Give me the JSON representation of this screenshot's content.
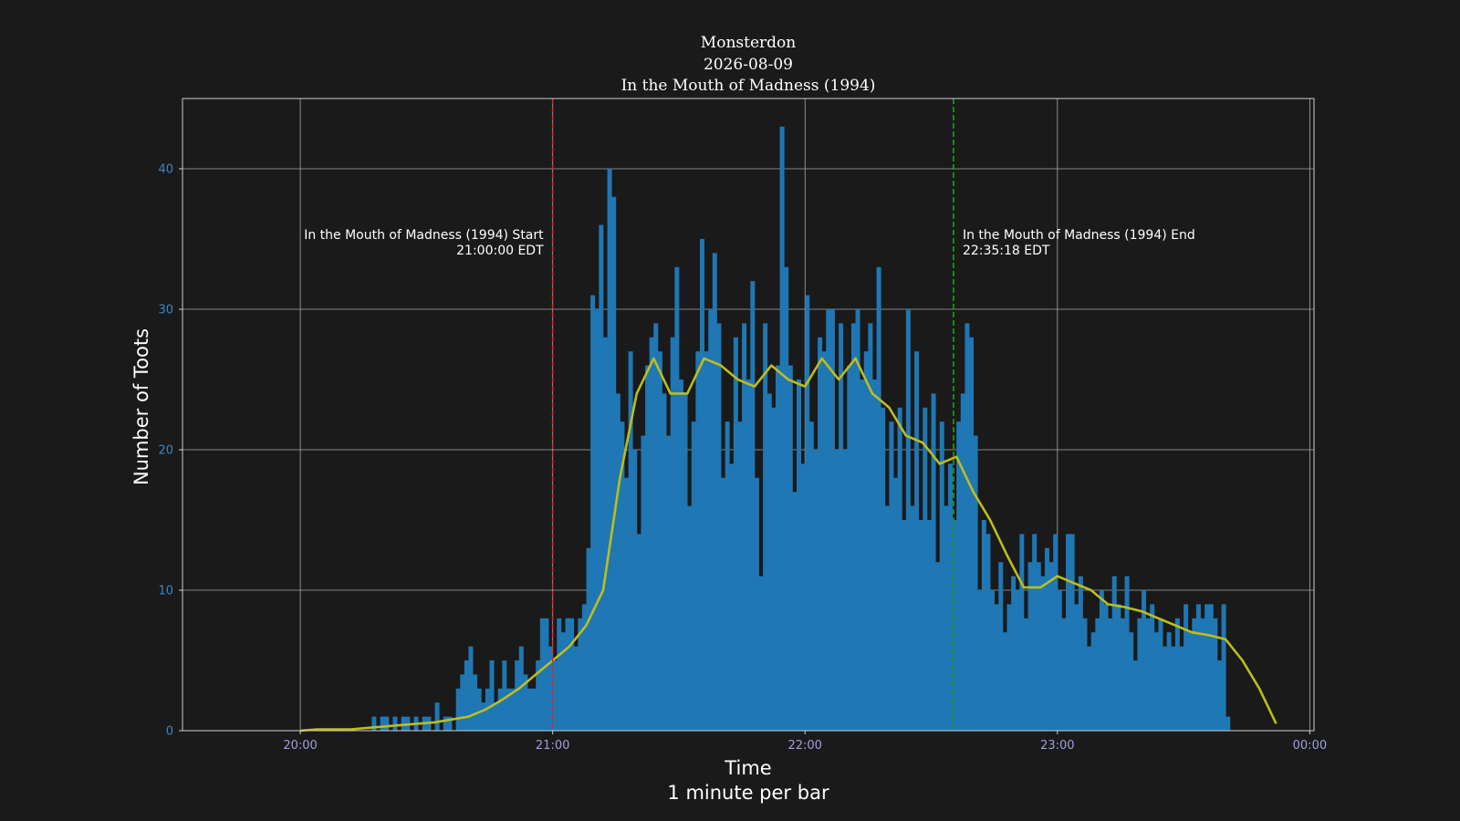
{
  "chart_data": {
    "type": "bar",
    "title": [
      "Monsterdon",
      "2026-08-09",
      "In the Mouth of Madness (1994)"
    ],
    "xlabel": "Time",
    "xlabel_sub": "1 minute per bar",
    "ylabel": "Number of Toots",
    "x_ticks": [
      "20:00",
      "21:00",
      "22:00",
      "23:00",
      "00:00"
    ],
    "y_ticks": [
      0,
      10,
      20,
      30,
      40
    ],
    "xlim": [
      "19:32",
      "00:01"
    ],
    "ylim": [
      0,
      45
    ],
    "grid": true,
    "bar_width_minutes": 1,
    "bars_start": "20:11",
    "bar_values": [
      0,
      0,
      0,
      0,
      0,
      0,
      1,
      0,
      1,
      1,
      0,
      1,
      0,
      1,
      1,
      0,
      1,
      0,
      1,
      1,
      0,
      2,
      0,
      1,
      1,
      0,
      3,
      4,
      5,
      6,
      4,
      3,
      2,
      3,
      5,
      2,
      3,
      5,
      3,
      3,
      5,
      6,
      4,
      3,
      3,
      5,
      8,
      8,
      6,
      5,
      8,
      7,
      8,
      8,
      6,
      8,
      9,
      13,
      31,
      30,
      36,
      28,
      40,
      38,
      24,
      22,
      18,
      27,
      20,
      14,
      21,
      26,
      28,
      29,
      27,
      24,
      21,
      28,
      33,
      25,
      24,
      16,
      22,
      27,
      35,
      27,
      30,
      34,
      29,
      18,
      22,
      19,
      28,
      22,
      29,
      25,
      32,
      18,
      11,
      29,
      24,
      23,
      26,
      43,
      33,
      26,
      17,
      25,
      19,
      31,
      22,
      20,
      28,
      27,
      30,
      30,
      20,
      29,
      20,
      26,
      29,
      30,
      25,
      27,
      29,
      25,
      33,
      23,
      16,
      22,
      18,
      23,
      15,
      30,
      16,
      27,
      15,
      23,
      15,
      24,
      12,
      22,
      16,
      19,
      15,
      22,
      24,
      29,
      28,
      21,
      10,
      15,
      14,
      10,
      9,
      12,
      7,
      9,
      11,
      10,
      14,
      8,
      12,
      14,
      12,
      11,
      13,
      12,
      14,
      10,
      8,
      14,
      14,
      9,
      11,
      8,
      6,
      7,
      8,
      10,
      9,
      8,
      11,
      9,
      8,
      11,
      7,
      5,
      8,
      10,
      8,
      9,
      7,
      8,
      6,
      7,
      6,
      8,
      6,
      9,
      7,
      8,
      9,
      8,
      9,
      9,
      8,
      5,
      9,
      1
    ],
    "smooth_start": "20:00",
    "smooth_values": [
      0,
      0.1,
      0.1,
      0.1,
      0.2,
      0.3,
      0.4,
      0.5,
      0.6,
      0.8,
      1.0,
      1.5,
      2.2,
      3.0,
      4.0,
      5.0,
      6.0,
      7.5,
      10,
      18,
      24,
      26.5,
      24,
      24,
      26.5,
      26,
      25,
      24.5,
      26,
      25,
      24.5,
      26.5,
      25,
      26.5,
      24,
      23,
      21,
      20.5,
      19,
      19.5,
      17,
      15,
      12.5,
      10.2,
      10.2,
      11,
      10.5,
      10,
      9,
      8.8,
      8.5,
      8,
      7.5,
      7,
      6.8,
      6.5,
      5,
      3,
      0.5
    ],
    "markers": [
      {
        "label": "In the Mouth of Madness (1994) Start",
        "time": "21:00:00 EDT",
        "color": "#e8202a"
      },
      {
        "label": "In the Mouth of Madness (1994) End",
        "time": "22:35:18 EDT",
        "color": "#1aa01a"
      }
    ],
    "colors": {
      "bars": "#1f77b4",
      "smooth": "#bdbd1e",
      "background": "#1a1a1a",
      "grid": "#a8a8a8"
    }
  }
}
